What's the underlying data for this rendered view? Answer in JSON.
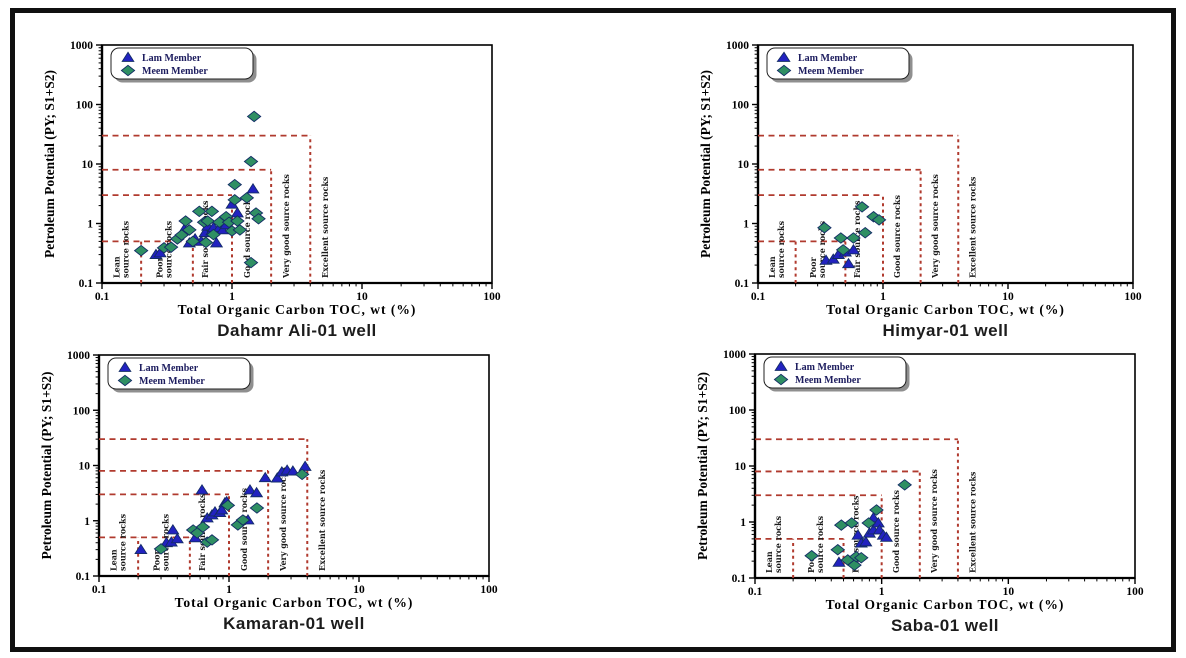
{
  "figure": {
    "colors": {
      "boundary": "#b03a2e",
      "lam": "#2222c0",
      "meem": "#2f8f63",
      "marker_edge": "#132c66",
      "legend_text": "#1c1c5e",
      "shadow": "#8f8f8f",
      "frame": "#101010"
    },
    "legend": {
      "items": [
        {
          "label": "Lam Member",
          "marker": "triangle",
          "color": "#2222c0"
        },
        {
          "label": "Meem Member",
          "marker": "diamond",
          "color": "#2f8f63"
        }
      ]
    },
    "axes": {
      "xlabel": "Total Organic Carbon TOC, wt (%)",
      "ylabel": "Petroleum Potential (PY; S1+S2)",
      "x_ticks": [
        "0.1",
        "1",
        "10",
        "100"
      ],
      "y_ticks": [
        "0.1",
        "1",
        "10",
        "100",
        "1000"
      ],
      "xlim": [
        0.1,
        100
      ],
      "ylim": [
        0.1,
        1000
      ],
      "xscale": "log",
      "yscale": "log",
      "grid": false
    },
    "classification": {
      "h_lines": [
        {
          "y": 0.5,
          "x1": 0.1,
          "x2": 0.5
        },
        {
          "y": 3,
          "x1": 0.1,
          "x2": 1
        },
        {
          "y": 8,
          "x1": 0.1,
          "x2": 2
        },
        {
          "y": 30,
          "x1": 0.1,
          "x2": 4
        }
      ],
      "v_lines": [
        {
          "x": 0.2,
          "y1": 0.1,
          "y2": 0.5
        },
        {
          "x": 0.5,
          "y1": 0.1,
          "y2": 0.5
        },
        {
          "x": 1,
          "y1": 0.1,
          "y2": 3
        },
        {
          "x": 2,
          "y1": 0.1,
          "y2": 8
        },
        {
          "x": 4,
          "y1": 0.1,
          "y2": 30
        }
      ],
      "zones": [
        {
          "label_lines": [
            "Lean",
            "source rocks"
          ],
          "x": 0.14
        },
        {
          "label_lines": [
            "Poor",
            "source rocks"
          ],
          "x": 0.3
        },
        {
          "label_lines": [
            "Fair source rocks"
          ],
          "x": 0.62
        },
        {
          "label_lines": [
            "Good source rocks"
          ],
          "x": 1.3
        },
        {
          "label_lines": [
            "Very good source rocks"
          ],
          "x": 2.6
        },
        {
          "label_lines": [
            "Excellent source rocks"
          ],
          "x": 5.2
        }
      ]
    }
  },
  "chart_data": [
    {
      "type": "scatter",
      "title": "Dahamr Ali-01 well",
      "series": [
        {
          "name": "Lam Member",
          "marker": "triangle",
          "color": "#2222c0",
          "points": [
            [
              0.26,
              0.3
            ],
            [
              0.28,
              0.32
            ],
            [
              0.43,
              0.8
            ],
            [
              0.47,
              0.47
            ],
            [
              0.52,
              0.55
            ],
            [
              0.58,
              0.5
            ],
            [
              0.62,
              0.7
            ],
            [
              0.65,
              0.9
            ],
            [
              0.7,
              0.75
            ],
            [
              0.72,
              0.85
            ],
            [
              0.76,
              0.47
            ],
            [
              0.8,
              0.85
            ],
            [
              0.85,
              0.78
            ],
            [
              0.9,
              0.95
            ],
            [
              1.0,
              2.1
            ],
            [
              1.1,
              1.5
            ],
            [
              1.45,
              3.8
            ]
          ]
        },
        {
          "name": "Meem Member",
          "marker": "diamond",
          "color": "#2f8f63",
          "points": [
            [
              0.2,
              0.35
            ],
            [
              0.3,
              0.39
            ],
            [
              0.34,
              0.4
            ],
            [
              0.38,
              0.55
            ],
            [
              0.41,
              0.64
            ],
            [
              0.44,
              1.1
            ],
            [
              0.47,
              0.78
            ],
            [
              0.5,
              0.5
            ],
            [
              0.56,
              1.6
            ],
            [
              0.61,
              1.05
            ],
            [
              0.63,
              0.48
            ],
            [
              0.65,
              1.1
            ],
            [
              0.7,
              1.6
            ],
            [
              0.72,
              0.65
            ],
            [
              0.8,
              1.05
            ],
            [
              0.9,
              1.3
            ],
            [
              0.95,
              1.05
            ],
            [
              1.0,
              0.75
            ],
            [
              1.05,
              4.5
            ],
            [
              1.05,
              2.5
            ],
            [
              1.1,
              1.1
            ],
            [
              1.15,
              0.78
            ],
            [
              1.3,
              2.7
            ],
            [
              1.4,
              11.0
            ],
            [
              1.48,
              63.0
            ],
            [
              1.53,
              1.5
            ],
            [
              1.6,
              1.2
            ],
            [
              1.4,
              0.22
            ]
          ]
        }
      ]
    },
    {
      "type": "scatter",
      "title": "Himyar-01 well",
      "series": [
        {
          "name": "Lam Member",
          "marker": "triangle",
          "color": "#2222c0",
          "points": [
            [
              0.35,
              0.24
            ],
            [
              0.4,
              0.25
            ],
            [
              0.44,
              0.3
            ],
            [
              0.5,
              0.33
            ],
            [
              0.53,
              0.21
            ],
            [
              0.58,
              0.36
            ]
          ]
        },
        {
          "name": "Meem Member",
          "marker": "diamond",
          "color": "#2f8f63",
          "points": [
            [
              0.34,
              0.85
            ],
            [
              0.46,
              0.57
            ],
            [
              0.48,
              0.36
            ],
            [
              0.58,
              0.57
            ],
            [
              0.68,
              1.9
            ],
            [
              0.72,
              0.7
            ],
            [
              0.84,
              1.3
            ],
            [
              0.93,
              1.15
            ]
          ]
        }
      ]
    },
    {
      "type": "scatter",
      "title": "Kamaran-01 well",
      "series": [
        {
          "name": "Lam Member",
          "marker": "triangle",
          "color": "#2222c0",
          "points": [
            [
              0.21,
              0.3
            ],
            [
              0.33,
              0.4
            ],
            [
              0.36,
              0.41
            ],
            [
              0.37,
              0.68
            ],
            [
              0.4,
              0.47
            ],
            [
              0.55,
              0.49
            ],
            [
              0.62,
              3.6
            ],
            [
              0.68,
              1.12
            ],
            [
              0.74,
              1.27
            ],
            [
              0.78,
              1.44
            ],
            [
              0.85,
              1.4
            ],
            [
              0.88,
              1.56
            ],
            [
              0.93,
              2.1
            ],
            [
              0.96,
              2.2
            ],
            [
              1.4,
              1.03
            ],
            [
              1.45,
              3.6
            ],
            [
              1.63,
              3.2
            ],
            [
              1.9,
              6.0
            ],
            [
              2.35,
              5.9
            ],
            [
              2.55,
              7.6
            ],
            [
              2.8,
              8.2
            ],
            [
              3.1,
              7.9
            ],
            [
              3.85,
              9.6
            ]
          ]
        },
        {
          "name": "Meem Member",
          "marker": "diamond",
          "color": "#2f8f63",
          "points": [
            [
              0.3,
              0.31
            ],
            [
              0.53,
              0.68
            ],
            [
              0.57,
              0.6
            ],
            [
              0.63,
              0.77
            ],
            [
              0.68,
              0.41
            ],
            [
              0.74,
              0.45
            ],
            [
              0.98,
              1.9
            ],
            [
              1.17,
              0.84
            ],
            [
              1.28,
              1.03
            ],
            [
              1.64,
              1.7
            ],
            [
              3.65,
              6.9
            ]
          ]
        }
      ]
    },
    {
      "type": "scatter",
      "title": "Saba-01 well",
      "series": [
        {
          "name": "Lam Member",
          "marker": "triangle",
          "color": "#2222c0",
          "points": [
            [
              0.46,
              0.19
            ],
            [
              0.65,
              0.58
            ],
            [
              0.69,
              0.42
            ],
            [
              0.75,
              0.44
            ],
            [
              0.8,
              0.63
            ],
            [
              0.86,
              0.72
            ],
            [
              0.86,
              1.18
            ],
            [
              0.94,
              0.96
            ],
            [
              0.96,
              0.72
            ],
            [
              1.03,
              0.58
            ],
            [
              1.09,
              0.53
            ]
          ]
        },
        {
          "name": "Meem Member",
          "marker": "diamond",
          "color": "#2f8f63",
          "points": [
            [
              0.28,
              0.25
            ],
            [
              0.45,
              0.32
            ],
            [
              0.48,
              0.88
            ],
            [
              0.54,
              0.21
            ],
            [
              0.58,
              0.96
            ],
            [
              0.61,
              0.17
            ],
            [
              0.63,
              0.24
            ],
            [
              0.69,
              0.23
            ],
            [
              0.79,
              0.96
            ],
            [
              0.91,
              1.64
            ],
            [
              1.52,
              4.6
            ]
          ]
        }
      ]
    }
  ]
}
